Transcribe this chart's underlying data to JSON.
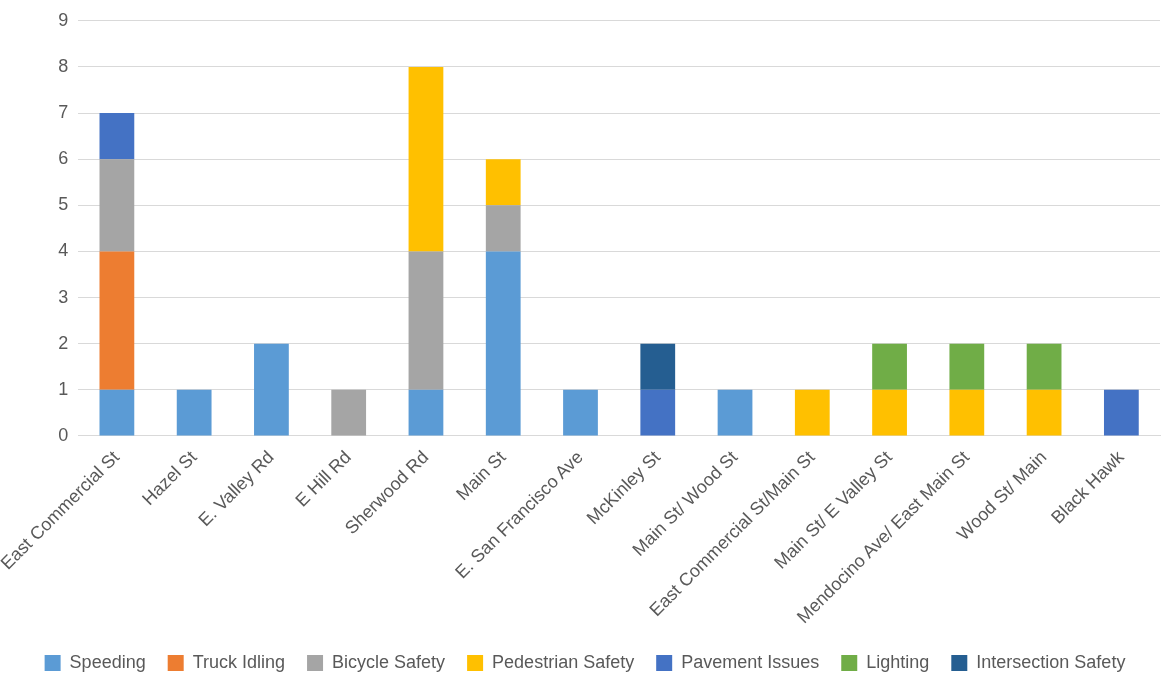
{
  "chart_data": {
    "type": "bar",
    "stacked": true,
    "categories": [
      "East Commercial St",
      "Hazel St",
      "E. Valley Rd",
      "E Hill Rd",
      "Sherwood Rd",
      "Main St",
      "E. San Francisco Ave",
      "McKinley St",
      "Main St/ Wood St",
      "East Commercial St/Main St",
      "Main St/ E Valley St",
      "Mendocino Ave/ East Main St",
      "Wood St/ Main",
      "Black Hawk"
    ],
    "series": [
      {
        "name": "Speeding",
        "color": "#5b9bd5",
        "values": [
          1,
          1,
          2,
          null,
          1,
          4,
          1,
          null,
          1,
          null,
          null,
          null,
          null,
          null
        ]
      },
      {
        "name": "Truck Idling",
        "color": "#ed7d31",
        "values": [
          3,
          null,
          null,
          null,
          null,
          null,
          null,
          null,
          null,
          null,
          null,
          null,
          null,
          null
        ]
      },
      {
        "name": "Bicycle Safety",
        "color": "#a5a5a5",
        "values": [
          2,
          null,
          null,
          1,
          3,
          1,
          null,
          null,
          null,
          null,
          null,
          null,
          null,
          null
        ]
      },
      {
        "name": "Pedestrian Safety",
        "color": "#ffc000",
        "values": [
          null,
          null,
          null,
          null,
          4,
          1,
          null,
          null,
          null,
          1,
          1,
          1,
          1,
          null
        ]
      },
      {
        "name": "Pavement Issues",
        "color": "#4472c4",
        "values": [
          1,
          null,
          null,
          null,
          null,
          null,
          null,
          1,
          null,
          null,
          null,
          null,
          null,
          1
        ]
      },
      {
        "name": "Lighting",
        "color": "#70ad47",
        "values": [
          null,
          null,
          null,
          null,
          null,
          null,
          null,
          null,
          null,
          null,
          1,
          1,
          1,
          null
        ]
      },
      {
        "name": "Intersection Safety",
        "color": "#255e91",
        "values": [
          null,
          null,
          null,
          null,
          null,
          null,
          null,
          1,
          null,
          null,
          null,
          null,
          null,
          null
        ]
      }
    ],
    "ylim": [
      0,
      9
    ],
    "yticks": [
      0,
      1,
      2,
      3,
      4,
      5,
      6,
      7,
      8,
      9
    ],
    "grid": "y",
    "legend": "bottom"
  }
}
